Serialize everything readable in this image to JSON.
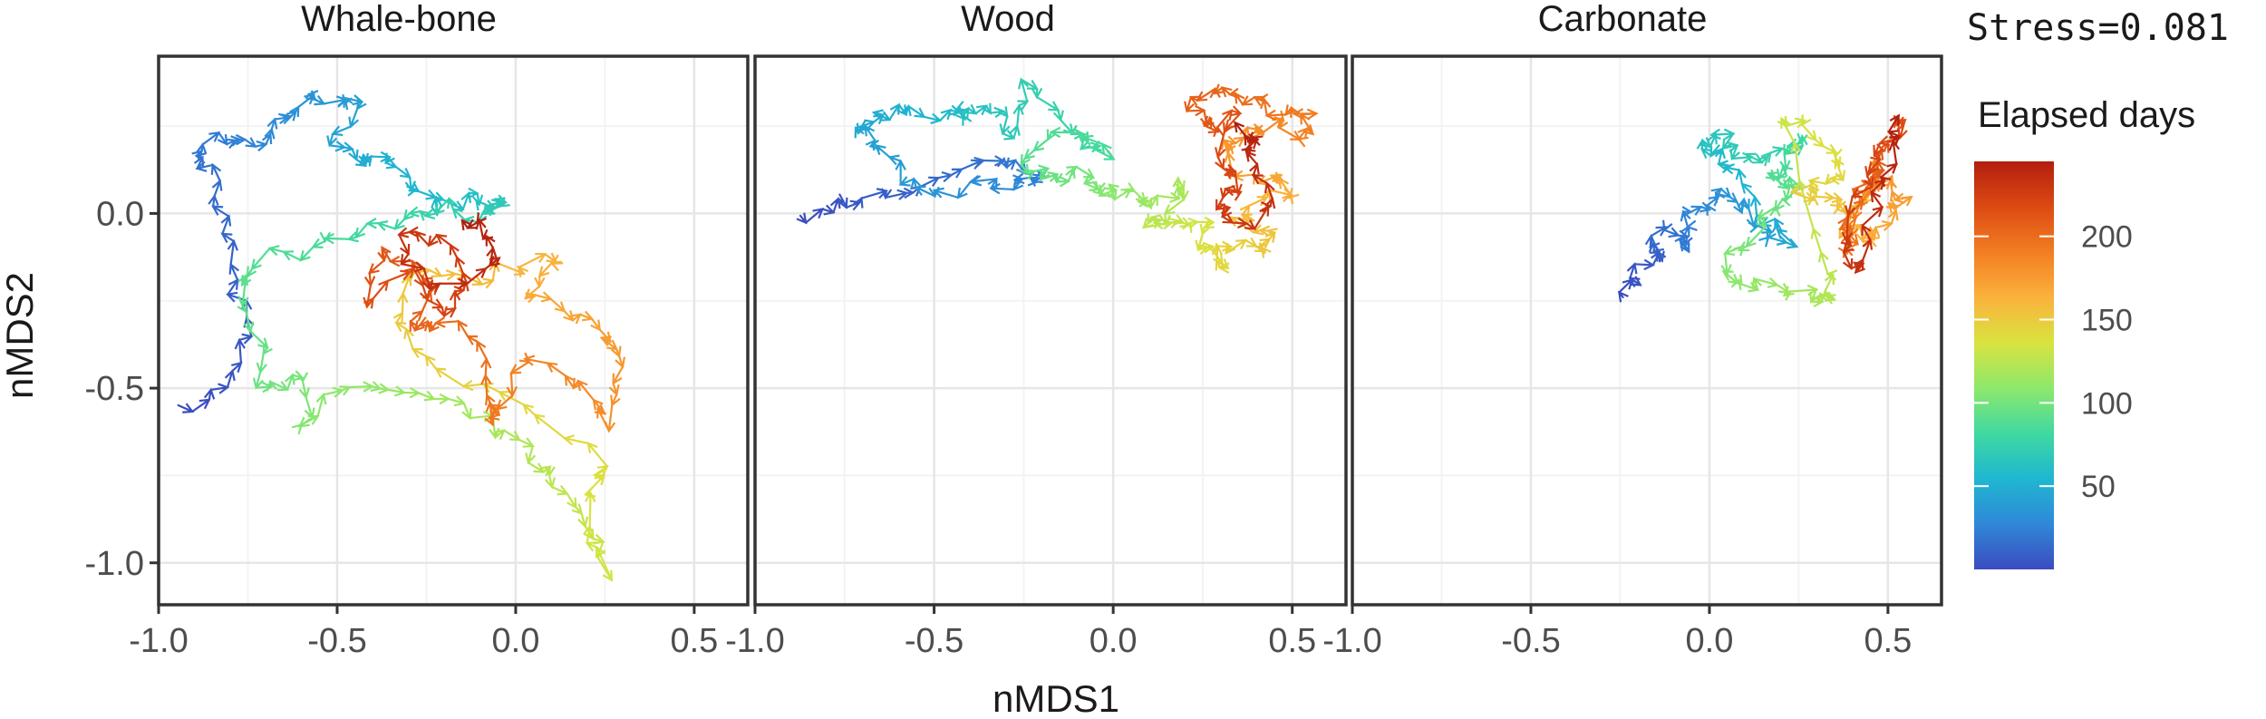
{
  "stress_label": "Stress=0.081",
  "colors": {
    "panel_border": "#333333",
    "grid_major": "#e6e6e6",
    "grid_minor": "#f3f3f3",
    "palette": [
      "#3b4cc0",
      "#2f88d8",
      "#1fb7d0",
      "#3fd9a0",
      "#8ee86b",
      "#d9e33f",
      "#fbb13c",
      "#f27e22",
      "#dc4a13",
      "#b21e0f"
    ]
  },
  "chart_data": {
    "type": "path",
    "xlabel": "nMDS1",
    "ylabel": "nMDS2",
    "xlim": [
      -1.0,
      0.65
    ],
    "ylim": [
      -1.12,
      0.45
    ],
    "x_ticks": [
      -1.0,
      -0.5,
      0.0,
      0.5
    ],
    "x_tick_labels": [
      "-1.0",
      "-0.5",
      "0.0",
      "0.5"
    ],
    "y_ticks": [
      -1.0,
      -0.5,
      0.0
    ],
    "y_tick_labels": [
      "-1.0",
      "-0.5",
      "0.0"
    ],
    "grid": true,
    "legend": {
      "title": "Elapsed days",
      "position": "right",
      "range": [
        0,
        245
      ],
      "ticks": [
        50,
        100,
        150,
        200
      ],
      "tick_labels": [
        "50",
        "100",
        "150",
        "200"
      ]
    },
    "panels": [
      {
        "title": "Whale-bone",
        "waypoints": [
          [
            -0.92,
            -0.57
          ],
          [
            -0.82,
            -0.5
          ],
          [
            -0.75,
            -0.33
          ],
          [
            -0.8,
            -0.2
          ],
          [
            -0.82,
            0.0
          ],
          [
            -0.86,
            0.12
          ],
          [
            -0.9,
            0.2
          ],
          [
            -0.78,
            0.22
          ],
          [
            -0.72,
            0.2
          ],
          [
            -0.66,
            0.28
          ],
          [
            -0.58,
            0.32
          ],
          [
            -0.5,
            0.34
          ],
          [
            -0.45,
            0.3
          ],
          [
            -0.5,
            0.22
          ],
          [
            -0.44,
            0.15
          ],
          [
            -0.36,
            0.14
          ],
          [
            -0.28,
            0.08
          ],
          [
            -0.22,
            0.02
          ],
          [
            -0.15,
            0.04
          ],
          [
            -0.08,
            0.02
          ],
          [
            -0.04,
            0.04
          ],
          [
            -0.1,
            -0.02
          ],
          [
            -0.2,
            0.02
          ],
          [
            -0.3,
            0.0
          ],
          [
            -0.4,
            -0.04
          ],
          [
            -0.55,
            -0.1
          ],
          [
            -0.7,
            -0.12
          ],
          [
            -0.76,
            -0.2
          ],
          [
            -0.72,
            -0.38
          ],
          [
            -0.7,
            -0.52
          ],
          [
            -0.58,
            -0.45
          ],
          [
            -0.6,
            -0.6
          ],
          [
            -0.5,
            -0.52
          ],
          [
            -0.35,
            -0.5
          ],
          [
            -0.2,
            -0.55
          ],
          [
            -0.05,
            -0.62
          ],
          [
            0.05,
            -0.7
          ],
          [
            0.1,
            -0.78
          ],
          [
            0.2,
            -0.88
          ],
          [
            0.25,
            -1.03
          ],
          [
            0.2,
            -0.82
          ],
          [
            0.25,
            -0.7
          ],
          [
            0.0,
            -0.55
          ],
          [
            -0.2,
            -0.45
          ],
          [
            -0.35,
            -0.3
          ],
          [
            -0.3,
            -0.15
          ],
          [
            -0.15,
            -0.2
          ],
          [
            0.0,
            -0.15
          ],
          [
            0.12,
            -0.12
          ],
          [
            0.05,
            -0.22
          ],
          [
            0.15,
            -0.3
          ],
          [
            0.25,
            -0.35
          ],
          [
            0.3,
            -0.42
          ],
          [
            0.28,
            -0.6
          ],
          [
            0.18,
            -0.5
          ],
          [
            0.05,
            -0.4
          ],
          [
            -0.05,
            -0.55
          ],
          [
            -0.08,
            -0.62
          ],
          [
            -0.1,
            -0.4
          ],
          [
            -0.2,
            -0.3
          ],
          [
            -0.3,
            -0.35
          ],
          [
            -0.22,
            -0.2
          ],
          [
            -0.38,
            -0.1
          ],
          [
            -0.42,
            -0.25
          ],
          [
            -0.28,
            -0.15
          ],
          [
            -0.18,
            -0.3
          ],
          [
            -0.12,
            -0.18
          ],
          [
            -0.22,
            -0.08
          ],
          [
            -0.35,
            -0.05
          ],
          [
            -0.25,
            -0.22
          ],
          [
            -0.05,
            -0.15
          ],
          [
            -0.1,
            -0.05
          ],
          [
            -0.15,
            -0.02
          ]
        ]
      },
      {
        "title": "Wood",
        "waypoints": [
          [
            -0.88,
            -0.01
          ],
          [
            -0.78,
            0.02
          ],
          [
            -0.68,
            0.04
          ],
          [
            -0.55,
            0.07
          ],
          [
            -0.42,
            0.12
          ],
          [
            -0.3,
            0.15
          ],
          [
            -0.2,
            0.12
          ],
          [
            -0.25,
            0.08
          ],
          [
            -0.35,
            0.1
          ],
          [
            -0.48,
            0.06
          ],
          [
            -0.6,
            0.1
          ],
          [
            -0.66,
            0.2
          ],
          [
            -0.72,
            0.25
          ],
          [
            -0.65,
            0.29
          ],
          [
            -0.55,
            0.3
          ],
          [
            -0.45,
            0.28
          ],
          [
            -0.4,
            0.3
          ],
          [
            -0.33,
            0.3
          ],
          [
            -0.28,
            0.22
          ],
          [
            -0.25,
            0.36
          ],
          [
            -0.15,
            0.26
          ],
          [
            -0.08,
            0.2
          ],
          [
            -0.02,
            0.18
          ],
          [
            -0.15,
            0.22
          ],
          [
            -0.25,
            0.15
          ],
          [
            -0.18,
            0.1
          ],
          [
            -0.1,
            0.12
          ],
          [
            -0.05,
            0.08
          ],
          [
            0.0,
            0.06
          ],
          [
            0.05,
            0.06
          ],
          [
            0.12,
            0.04
          ],
          [
            0.2,
            0.08
          ],
          [
            0.15,
            -0.02
          ],
          [
            0.08,
            -0.03
          ],
          [
            0.2,
            -0.04
          ],
          [
            0.28,
            -0.02
          ],
          [
            0.25,
            -0.1
          ],
          [
            0.3,
            -0.15
          ],
          [
            0.32,
            -0.08
          ],
          [
            0.4,
            -0.12
          ],
          [
            0.45,
            -0.06
          ],
          [
            0.35,
            -0.02
          ],
          [
            0.42,
            0.04
          ],
          [
            0.5,
            0.06
          ],
          [
            0.45,
            0.12
          ],
          [
            0.35,
            0.1
          ],
          [
            0.3,
            0.2
          ],
          [
            0.38,
            0.24
          ],
          [
            0.45,
            0.26
          ],
          [
            0.52,
            0.22
          ],
          [
            0.55,
            0.28
          ],
          [
            0.45,
            0.3
          ],
          [
            0.35,
            0.32
          ],
          [
            0.28,
            0.36
          ],
          [
            0.22,
            0.3
          ],
          [
            0.28,
            0.24
          ],
          [
            0.35,
            0.28
          ],
          [
            0.3,
            0.14
          ],
          [
            0.36,
            0.08
          ],
          [
            0.28,
            0.02
          ],
          [
            0.38,
            -0.04
          ],
          [
            0.44,
            0.04
          ],
          [
            0.36,
            0.16
          ],
          [
            0.42,
            0.2
          ],
          [
            0.34,
            0.26
          ]
        ]
      },
      {
        "title": "Carbonate",
        "waypoints": [
          [
            -0.24,
            -0.22
          ],
          [
            -0.2,
            -0.18
          ],
          [
            -0.15,
            -0.12
          ],
          [
            -0.18,
            -0.08
          ],
          [
            -0.12,
            -0.05
          ],
          [
            -0.05,
            -0.1
          ],
          [
            -0.08,
            -0.02
          ],
          [
            0.0,
            0.02
          ],
          [
            0.05,
            0.05
          ],
          [
            0.1,
            0.02
          ],
          [
            0.15,
            -0.05
          ],
          [
            0.22,
            -0.08
          ],
          [
            0.15,
            -0.02
          ],
          [
            0.08,
            0.1
          ],
          [
            0.02,
            0.16
          ],
          [
            -0.04,
            0.2
          ],
          [
            0.05,
            0.22
          ],
          [
            0.1,
            0.16
          ],
          [
            0.18,
            0.18
          ],
          [
            0.26,
            0.2
          ],
          [
            0.22,
            0.14
          ],
          [
            0.15,
            0.1
          ],
          [
            0.25,
            0.08
          ],
          [
            0.18,
            0.02
          ],
          [
            0.12,
            -0.08
          ],
          [
            0.05,
            -0.15
          ],
          [
            0.1,
            -0.2
          ],
          [
            0.2,
            -0.22
          ],
          [
            0.3,
            -0.25
          ],
          [
            0.35,
            -0.24
          ],
          [
            0.3,
            -0.12
          ],
          [
            0.22,
            0.28
          ],
          [
            0.3,
            0.22
          ],
          [
            0.38,
            0.15
          ],
          [
            0.32,
            0.08
          ],
          [
            0.25,
            0.05
          ],
          [
            0.35,
            0.02
          ],
          [
            0.42,
            0.03
          ],
          [
            0.38,
            -0.05
          ],
          [
            0.45,
            -0.08
          ],
          [
            0.5,
            -0.02
          ],
          [
            0.55,
            0.05
          ],
          [
            0.5,
            0.1
          ],
          [
            0.45,
            0.06
          ],
          [
            0.48,
            0.14
          ],
          [
            0.42,
            0.0
          ],
          [
            0.4,
            -0.12
          ],
          [
            0.38,
            -0.05
          ],
          [
            0.42,
            0.05
          ],
          [
            0.46,
            0.12
          ],
          [
            0.5,
            0.2
          ],
          [
            0.54,
            0.27
          ],
          [
            0.48,
            0.18
          ],
          [
            0.44,
            0.08
          ],
          [
            0.38,
            -0.1
          ],
          [
            0.42,
            -0.18
          ],
          [
            0.46,
            0.0
          ],
          [
            0.5,
            0.15
          ],
          [
            0.53,
            0.28
          ]
        ]
      }
    ]
  }
}
